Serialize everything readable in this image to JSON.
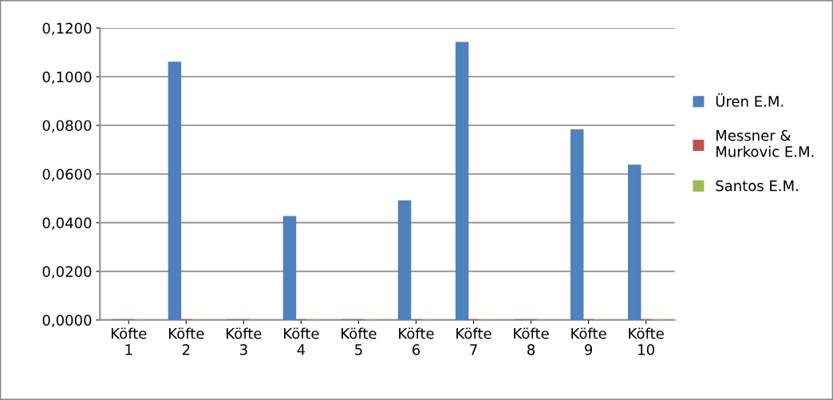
{
  "chart_data": {
    "type": "bar",
    "categories": [
      "Köfte 1",
      "Köfte 2",
      "Köfte 3",
      "Köfte 4",
      "Köfte 5",
      "Köfte 6",
      "Köfte 7",
      "Köfte 8",
      "Köfte 9",
      "Köfte 10"
    ],
    "series": [
      {
        "name": "Üren E.M.",
        "color": "#4f81bd",
        "values": [
          0,
          0.1058,
          0,
          0.0424,
          0,
          0.0488,
          0.1139,
          0,
          0.078,
          0.0635
        ]
      },
      {
        "name": "Messner & Murkovic E.M.",
        "color": "#c0504d",
        "values": [
          0,
          0,
          0,
          0,
          0,
          0,
          0,
          0,
          0,
          0
        ]
      },
      {
        "name": "Santos E.M.",
        "color": "#9bbb59",
        "values": [
          0,
          0,
          0,
          0,
          0,
          0,
          0,
          0,
          0,
          0
        ]
      }
    ],
    "ylim": [
      0,
      0.12
    ],
    "yticks": [
      {
        "value": 0,
        "label": "0,0000"
      },
      {
        "value": 0.02,
        "label": "0,0200"
      },
      {
        "value": 0.04,
        "label": "0,0400"
      },
      {
        "value": 0.06,
        "label": "0,0600"
      },
      {
        "value": 0.08,
        "label": "0,0800"
      },
      {
        "value": 0.1,
        "label": "0,1000"
      },
      {
        "value": 0.12,
        "label": "0,1200"
      }
    ],
    "grid": "y",
    "legend": "right"
  }
}
